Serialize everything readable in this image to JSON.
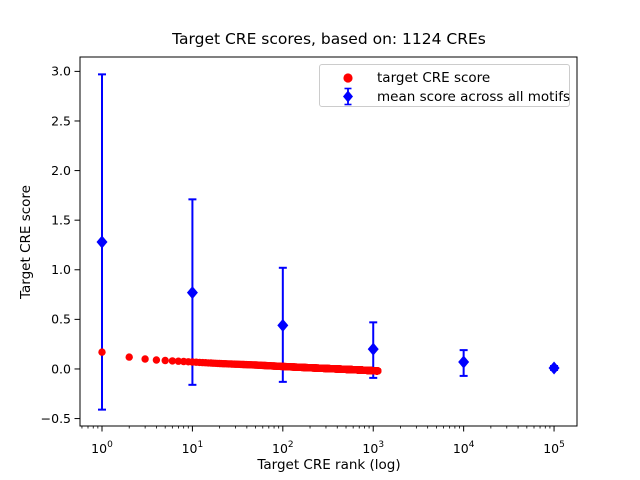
{
  "chart_data": {
    "type": "scatter",
    "title": "Target CRE scores, based on: 1124 CREs",
    "xlabel": "Target CRE rank (log)",
    "ylabel": "Target CRE score",
    "x_scale": "log",
    "xlim": [
      0.571,
      179400
    ],
    "ylim": [
      -0.575,
      3.145
    ],
    "y_ticks": [
      {
        "value": 3.0,
        "label": "3.0"
      },
      {
        "value": 2.5,
        "label": "2.5"
      },
      {
        "value": 2.0,
        "label": "2.0"
      },
      {
        "value": 1.5,
        "label": "1.5"
      },
      {
        "value": 1.0,
        "label": "1.0"
      },
      {
        "value": 0.5,
        "label": "0.5"
      },
      {
        "value": 0.0,
        "label": "0.0"
      },
      {
        "value": -0.5,
        "label": "−0.5"
      }
    ],
    "x_ticks": [
      {
        "value": 1,
        "base": "10",
        "exp": "0"
      },
      {
        "value": 10,
        "base": "10",
        "exp": "1"
      },
      {
        "value": 100,
        "base": "10",
        "exp": "2"
      },
      {
        "value": 1000,
        "base": "10",
        "exp": "3"
      },
      {
        "value": 10000,
        "base": "10",
        "exp": "4"
      },
      {
        "value": 100000,
        "base": "10",
        "exp": "5"
      }
    ],
    "series": [
      {
        "name": "target CRE score",
        "type": "scatter",
        "marker": "circle",
        "color": "#ff0000",
        "n_points": 1124,
        "anchors": [
          [
            1,
            0.17
          ],
          [
            2,
            0.12
          ],
          [
            3,
            0.1
          ],
          [
            4,
            0.09
          ],
          [
            5,
            0.085
          ],
          [
            7,
            0.078
          ],
          [
            10,
            0.07
          ],
          [
            20,
            0.055
          ],
          [
            50,
            0.04
          ],
          [
            100,
            0.025
          ],
          [
            200,
            0.012
          ],
          [
            400,
            0.0
          ],
          [
            700,
            -0.01
          ],
          [
            1124,
            -0.02
          ]
        ]
      },
      {
        "name": "mean score across all motifs",
        "type": "errorbar",
        "marker": "diamond",
        "color": "#0000ff",
        "x": [
          1,
          10,
          100,
          1000,
          10000,
          100000
        ],
        "mean": [
          1.28,
          0.77,
          0.44,
          0.2,
          0.07,
          0.01
        ],
        "upper": [
          2.97,
          1.71,
          1.02,
          0.47,
          0.19,
          0.03
        ],
        "lower": [
          -0.41,
          -0.16,
          -0.13,
          -0.09,
          -0.07,
          -0.01
        ]
      }
    ],
    "legend": {
      "position": "upper right",
      "entries": [
        "target CRE score",
        "mean score across all motifs"
      ]
    }
  }
}
